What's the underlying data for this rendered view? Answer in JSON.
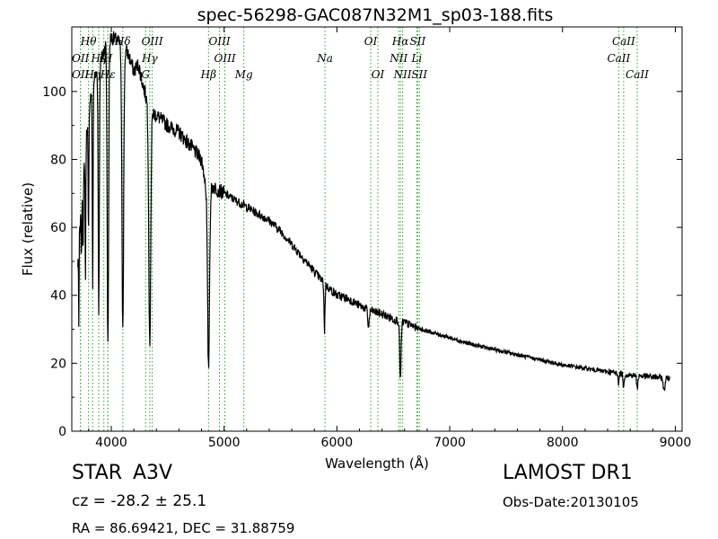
{
  "chart_data": {
    "type": "line",
    "title": "spec-56298-GAC087N32M1_sp03-188.fits",
    "xlabel": "Wavelength (Å)",
    "ylabel": "Flux (relative)",
    "xlim": [
      3650,
      9060
    ],
    "ylim": [
      0,
      119
    ],
    "xticks": [
      4000,
      5000,
      6000,
      7000,
      8000,
      9000
    ],
    "yticks": [
      0,
      20,
      40,
      60,
      80,
      100
    ],
    "grid": false,
    "line_color": "#000000",
    "marker_color": "#2ca02c",
    "continuum": [
      [
        3700,
        48
      ],
      [
        3760,
        78
      ],
      [
        3800,
        96
      ],
      [
        3850,
        104
      ],
      [
        3900,
        108
      ],
      [
        3950,
        114
      ],
      [
        4000,
        116
      ],
      [
        4050,
        115
      ],
      [
        4110,
        113
      ],
      [
        4150,
        111
      ],
      [
        4200,
        106
      ],
      [
        4240,
        108
      ],
      [
        4280,
        102
      ],
      [
        4320,
        97
      ],
      [
        4360,
        94
      ],
      [
        4400,
        93
      ],
      [
        4500,
        90
      ],
      [
        4600,
        88
      ],
      [
        4700,
        84
      ],
      [
        4800,
        80
      ],
      [
        4850,
        70
      ],
      [
        4900,
        72
      ],
      [
        4950,
        71
      ],
      [
        5000,
        70
      ],
      [
        5100,
        68
      ],
      [
        5200,
        66
      ],
      [
        5300,
        64
      ],
      [
        5400,
        62
      ],
      [
        5500,
        59
      ],
      [
        5600,
        55
      ],
      [
        5700,
        51
      ],
      [
        5800,
        47
      ],
      [
        5900,
        43
      ],
      [
        6000,
        40
      ],
      [
        6100,
        39
      ],
      [
        6200,
        37
      ],
      [
        6300,
        35.5
      ],
      [
        6400,
        34.5
      ],
      [
        6500,
        33
      ],
      [
        6600,
        32
      ],
      [
        6700,
        30.5
      ],
      [
        6800,
        29.5
      ],
      [
        6900,
        28.5
      ],
      [
        7000,
        27.5
      ],
      [
        7200,
        25.5
      ],
      [
        7400,
        24
      ],
      [
        7600,
        22.5
      ],
      [
        7800,
        21
      ],
      [
        8000,
        19.5
      ],
      [
        8200,
        18.5
      ],
      [
        8400,
        17.5
      ],
      [
        8600,
        16.5
      ],
      [
        8800,
        16
      ],
      [
        8950,
        15.5
      ]
    ],
    "absorption_dips": [
      [
        3712,
        24,
        3
      ],
      [
        3735,
        17,
        3
      ],
      [
        3750,
        20,
        4
      ],
      [
        3771,
        40,
        4
      ],
      [
        3798,
        38,
        5
      ],
      [
        3835,
        60,
        5
      ],
      [
        3889,
        72,
        7
      ],
      [
        3970,
        90,
        9
      ],
      [
        4102,
        82,
        11
      ],
      [
        4341,
        70,
        12
      ],
      [
        4862,
        52,
        12
      ],
      [
        5890,
        14,
        6
      ],
      [
        6280,
        5,
        10
      ],
      [
        6563,
        17,
        9
      ],
      [
        8498,
        3,
        6
      ],
      [
        8542,
        4,
        7
      ],
      [
        8662,
        4,
        7
      ],
      [
        8900,
        4,
        10
      ]
    ],
    "lines": [
      {
        "label": "OII",
        "wavelength": 3727,
        "row": 2
      },
      {
        "label": "Hθ",
        "wavelength": 3798,
        "row": 0
      },
      {
        "label": "OII",
        "wavelength": 3727,
        "row": 1
      },
      {
        "label": "Hη",
        "wavelength": 3835,
        "row": 2
      },
      {
        "label": "Hζ",
        "wavelength": 3889,
        "row": 1
      },
      {
        "label": "K",
        "wavelength": 3934,
        "row": 1
      },
      {
        "label": "Hε",
        "wavelength": 3970,
        "row": 2
      },
      {
        "label": "Hδ",
        "wavelength": 4102,
        "row": 0
      },
      {
        "label": "H",
        "wavelength": 3969,
        "row": 1
      },
      {
        "label": "G",
        "wavelength": 4304,
        "row": 2
      },
      {
        "label": "OIII",
        "wavelength": 4363,
        "row": 0
      },
      {
        "label": "Hγ",
        "wavelength": 4341,
        "row": 1
      },
      {
        "label": "Hβ",
        "wavelength": 4862,
        "row": 2
      },
      {
        "label": "OIII",
        "wavelength": 4959,
        "row": 0
      },
      {
        "label": "OIII",
        "wavelength": 5007,
        "row": 1
      },
      {
        "label": "Mg",
        "wavelength": 5175,
        "row": 2
      },
      {
        "label": "Na",
        "wavelength": 5894,
        "row": 1
      },
      {
        "label": "OI",
        "wavelength": 6300,
        "row": 0
      },
      {
        "label": "OI",
        "wavelength": 6363,
        "row": 2
      },
      {
        "label": "Hα",
        "wavelength": 6563,
        "row": 0
      },
      {
        "label": "NII",
        "wavelength": 6548,
        "row": 1
      },
      {
        "label": "NII",
        "wavelength": 6583,
        "row": 2
      },
      {
        "label": "SII",
        "wavelength": 6716,
        "row": 0
      },
      {
        "label": "Li",
        "wavelength": 6708,
        "row": 1
      },
      {
        "label": "SII",
        "wavelength": 6731,
        "row": 2
      },
      {
        "label": "CaII",
        "wavelength": 8498,
        "row": 1
      },
      {
        "label": "CaII",
        "wavelength": 8542,
        "row": 0
      },
      {
        "label": "CaII",
        "wavelength": 8662,
        "row": 2
      }
    ]
  },
  "info": {
    "class_label": "STAR",
    "subclass": "A3V",
    "survey": "LAMOST DR1",
    "cz": "cz = -28.2 ± 25.1",
    "obs_date": "Obs-Date:20130105",
    "coords": "RA = 86.69421, DEC = 31.88759"
  }
}
